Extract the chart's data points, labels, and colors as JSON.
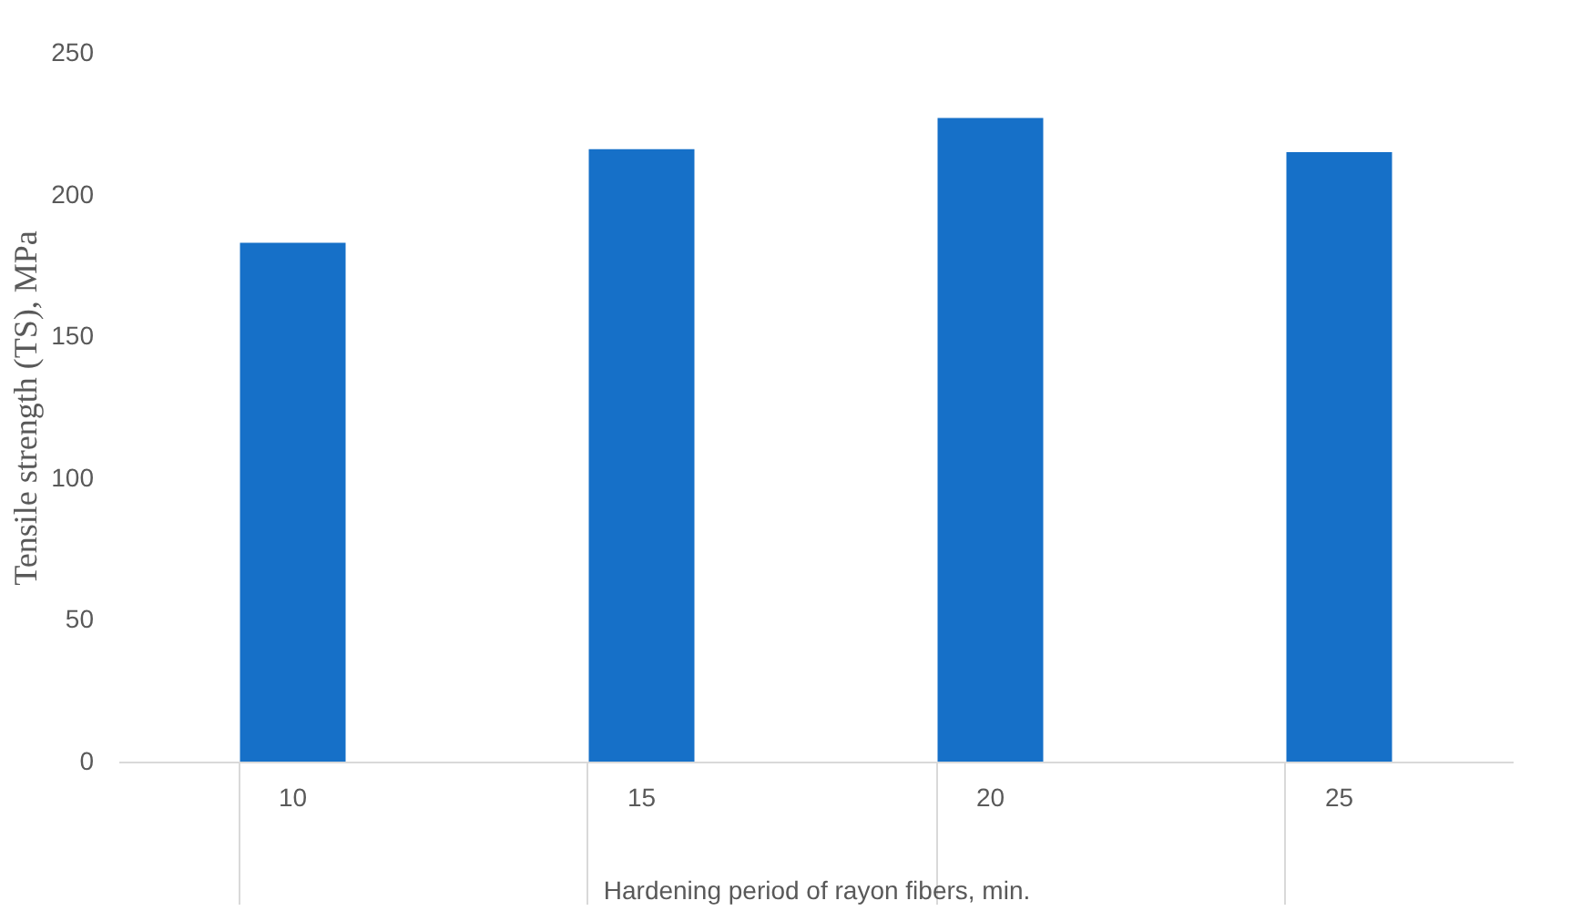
{
  "chart_data": {
    "type": "bar",
    "xlabel": "Hardening period of rayon fibers, min.",
    "ylabel": "Tensile strength (TS), MPa",
    "categories": [
      "10",
      "15",
      "20",
      "25"
    ],
    "values": [
      183,
      216,
      227,
      215
    ],
    "color": "#1670c8",
    "ylim": [
      0,
      250
    ],
    "yticks": [
      0,
      50,
      100,
      150,
      200,
      250
    ],
    "grid": false
  }
}
